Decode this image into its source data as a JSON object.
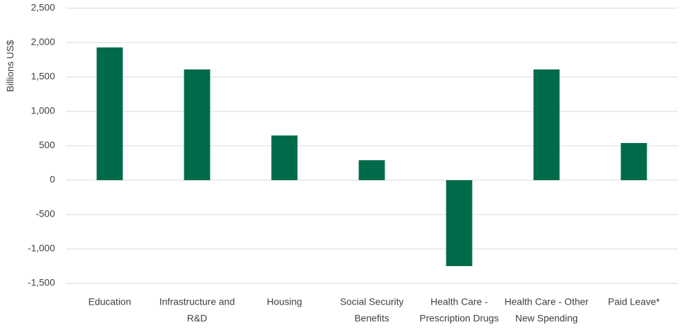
{
  "chart_data": {
    "type": "bar",
    "y_label": "Billions US$",
    "categories": [
      [
        "Education"
      ],
      [
        "Infrastructure and",
        "R&D"
      ],
      [
        "Housing"
      ],
      [
        "Social Security",
        "Benefits"
      ],
      [
        "Health Care -",
        "Prescription Drugs"
      ],
      [
        "Health Care - Other",
        "New Spending"
      ],
      [
        "Paid Leave*"
      ]
    ],
    "values": [
      1930,
      1610,
      650,
      290,
      -1250,
      1610,
      540
    ],
    "color": "#006b4b",
    "ylim": [
      -1500,
      2500
    ],
    "yticks": [
      {
        "value": -1500,
        "label": "-1,500"
      },
      {
        "value": -1000,
        "label": "-1,000"
      },
      -500,
      0,
      500,
      {
        "value": 1000,
        "label": "1,000"
      },
      {
        "value": 1500,
        "label": "1,500"
      },
      {
        "value": 2000,
        "label": "2,000"
      },
      {
        "value": 2500,
        "label": "2,500"
      }
    ],
    "grid": true
  }
}
